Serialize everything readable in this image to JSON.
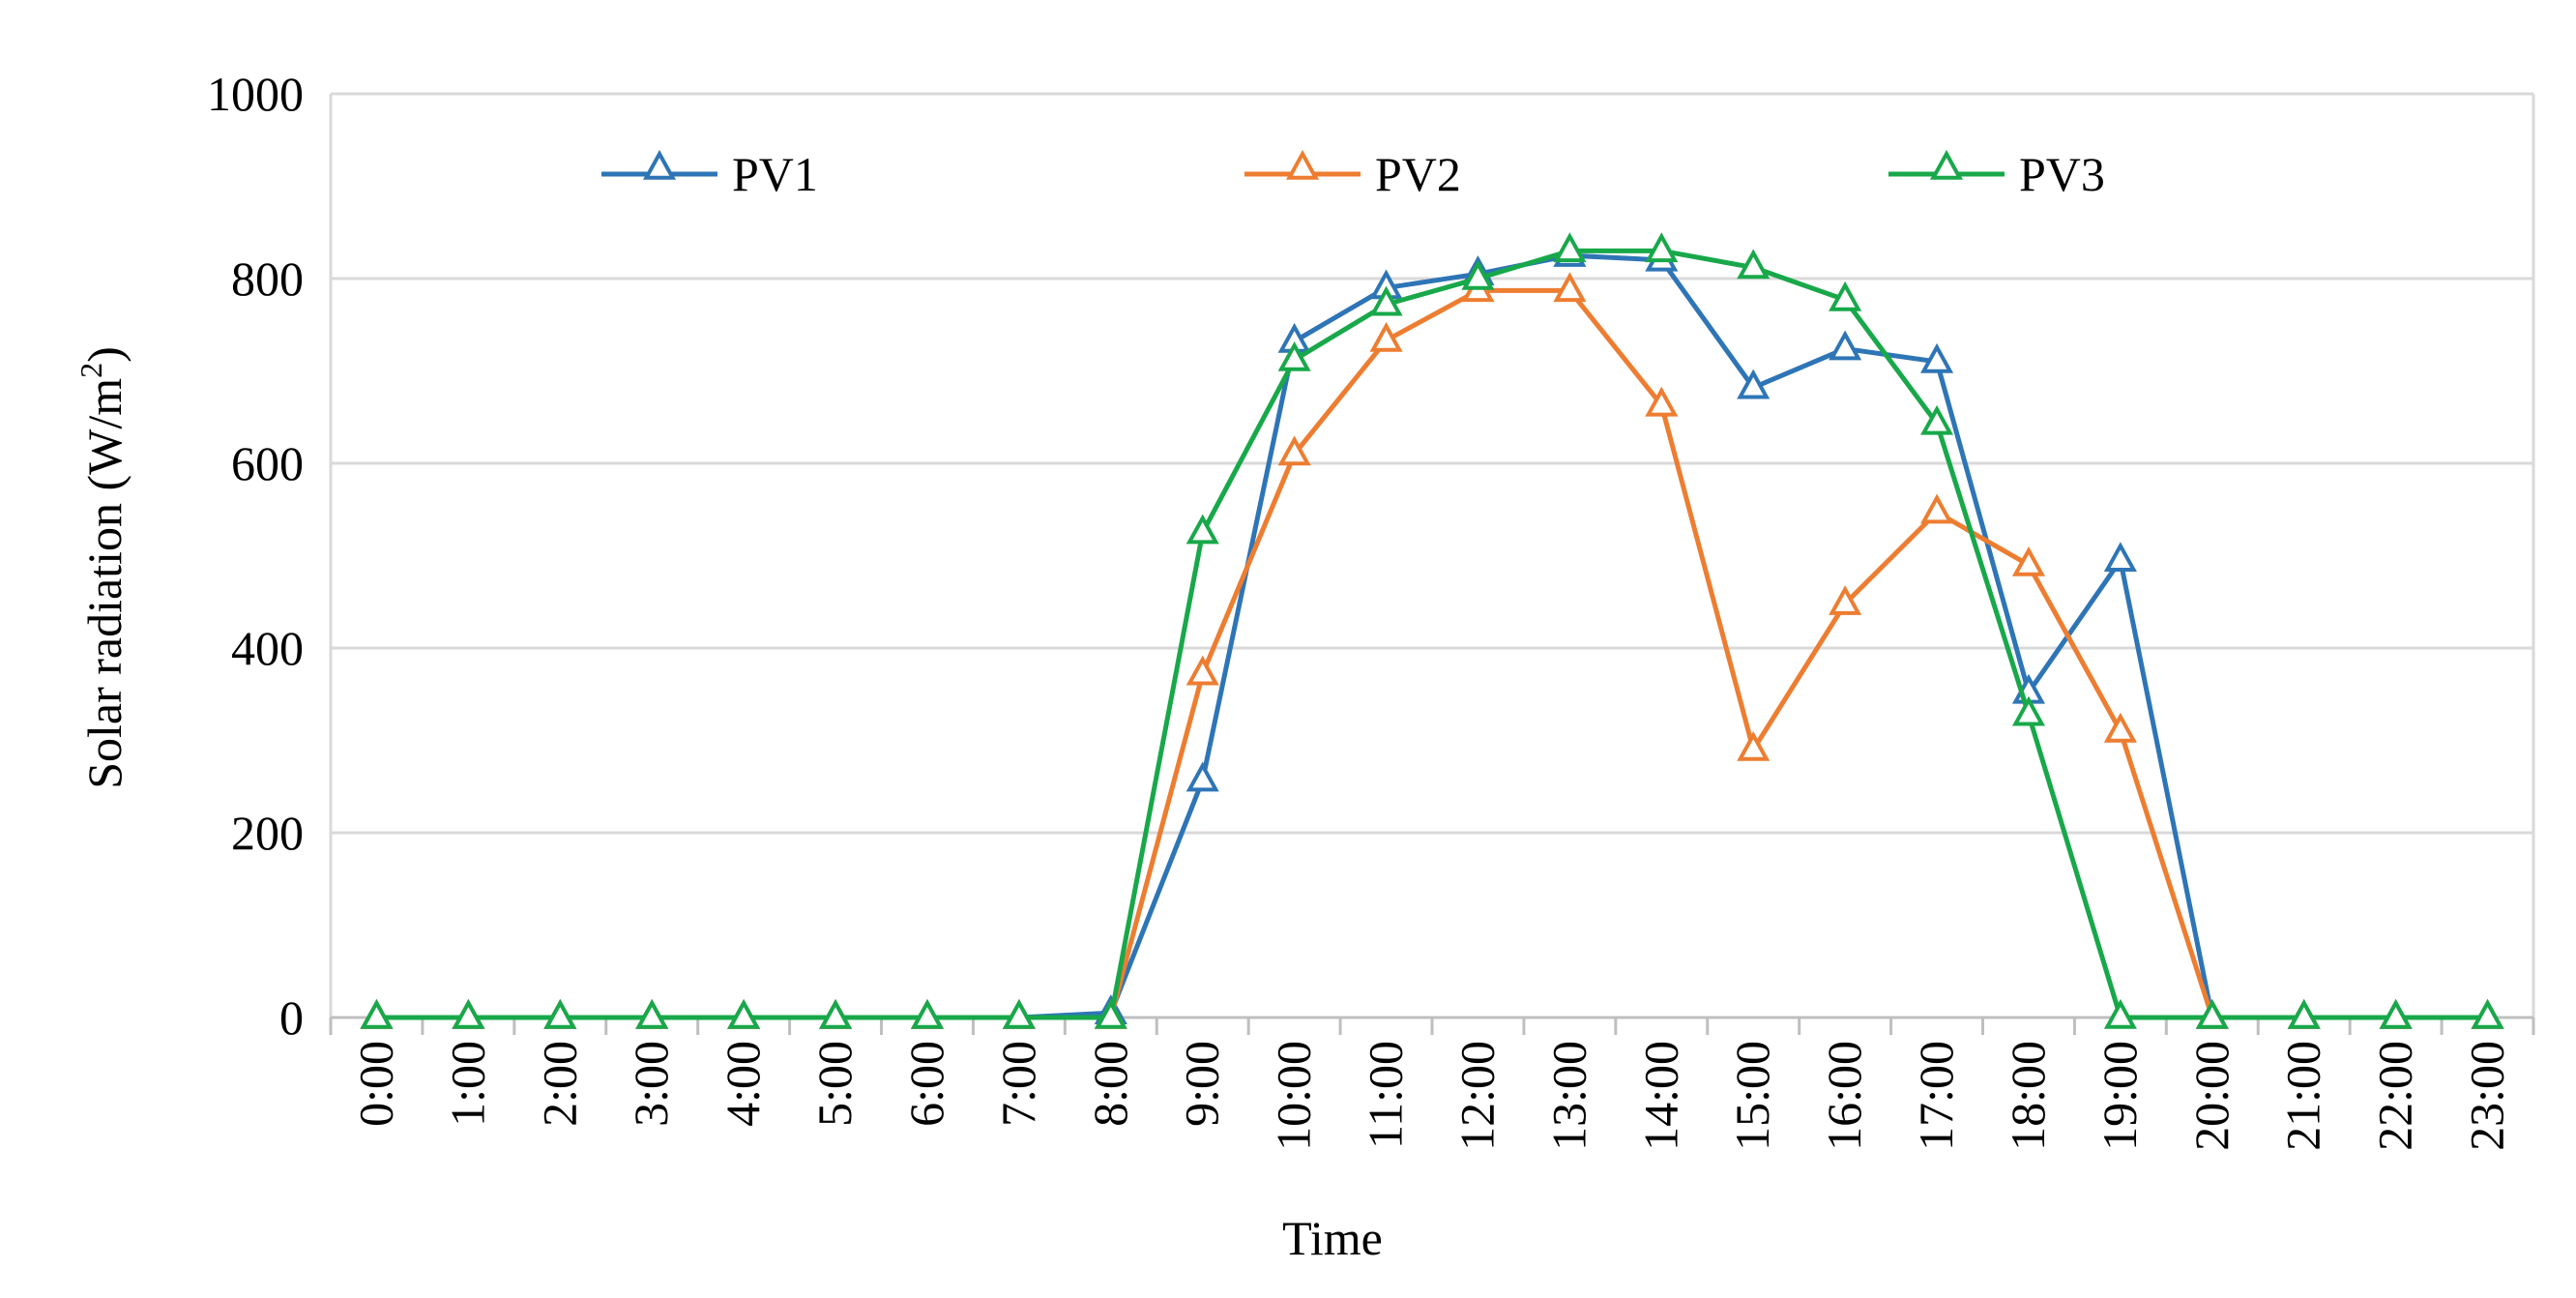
{
  "chart_data": {
    "type": "line",
    "title": "",
    "xlabel": "Time",
    "ylabel": "Solar radiation (W/m²)",
    "ylabel_main": "Solar radiation (W/m",
    "ylabel_sup": "2",
    "ylabel_tail": ")",
    "ylim": [
      0,
      1000
    ],
    "yticks": [
      0,
      200,
      400,
      600,
      800,
      1000
    ],
    "ytick_labels": [
      "0",
      "200",
      "400",
      "600",
      "800",
      "1000"
    ],
    "grid": true,
    "legend_position": "top",
    "categories": [
      "0:00",
      "1:00",
      "2:00",
      "3:00",
      "4:00",
      "5:00",
      "6:00",
      "7:00",
      "8:00",
      "9:00",
      "10:00",
      "11:00",
      "12:00",
      "13:00",
      "14:00",
      "15:00",
      "16:00",
      "17:00",
      "18:00",
      "19:00",
      "20:00",
      "21:00",
      "22:00",
      "23:00"
    ],
    "series": [
      {
        "name": "PV1",
        "color": "#2e75b6",
        "values": [
          0,
          0,
          0,
          0,
          0,
          0,
          0,
          0,
          5,
          257,
          732,
          790,
          805,
          825,
          820,
          682,
          724,
          710,
          352,
          495,
          0,
          0,
          0,
          0
        ]
      },
      {
        "name": "PV2",
        "color": "#ed7d31",
        "values": [
          0,
          0,
          0,
          0,
          0,
          0,
          0,
          0,
          0,
          372,
          610,
          733,
          787,
          787,
          663,
          290,
          448,
          547,
          490,
          310,
          0,
          0,
          0,
          0
        ]
      },
      {
        "name": "PV3",
        "color": "#18a84a",
        "values": [
          0,
          0,
          0,
          0,
          0,
          0,
          0,
          0,
          0,
          525,
          712,
          772,
          800,
          830,
          830,
          812,
          777,
          643,
          328,
          0,
          0,
          0,
          0,
          0
        ]
      }
    ]
  }
}
